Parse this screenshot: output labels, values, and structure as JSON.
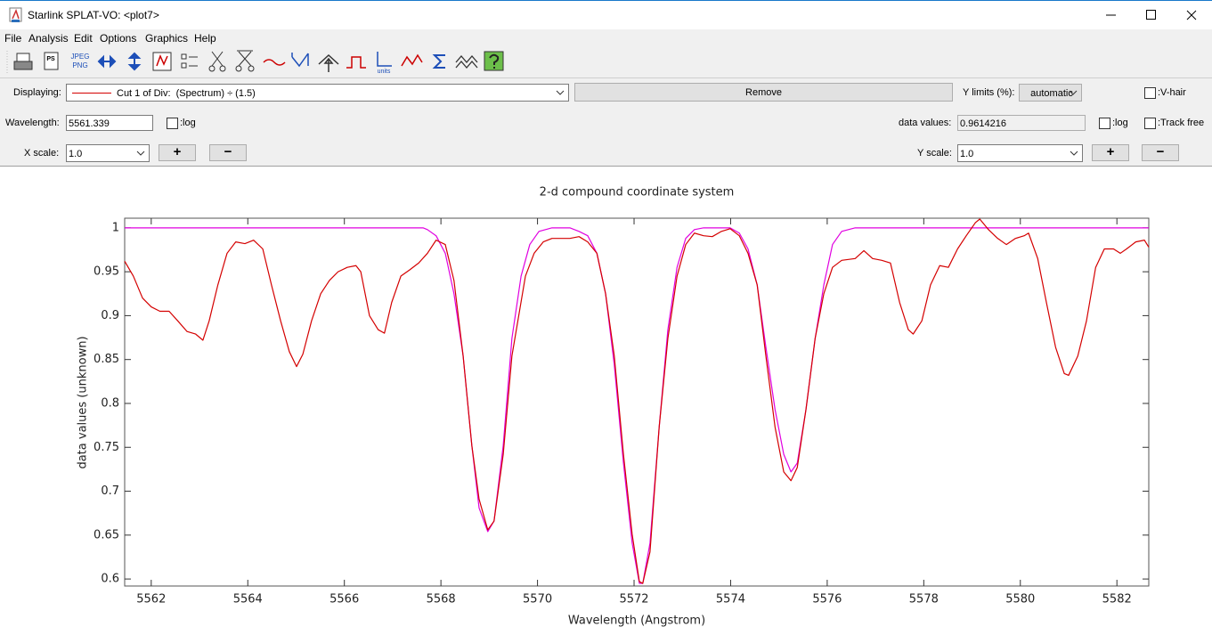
{
  "window": {
    "title": "Starlink SPLAT-VO: <plot7>"
  },
  "menu": [
    "File",
    "Analysis",
    "Edit",
    "Options",
    "Graphics",
    "Help"
  ],
  "toolbar": {
    "ps_icon": "PS",
    "jpeg_icon": [
      "JPEG",
      "PNG"
    ],
    "units_icon": "units"
  },
  "controls": {
    "displaying_label": "Displaying:",
    "displaying_value": "Cut 1 of Div:  (Spectrum) ÷ (1.5)",
    "remove_button": "Remove",
    "ylimits_label": "Y limits (%):",
    "ylimits_value": "automatic",
    "vhair": ":V-hair",
    "wavelength_label": "Wavelength:",
    "wavelength_value": "5561.339",
    "xlog": ":log",
    "data_values_label": "data values:",
    "data_values_value": "0.9614216",
    "ylog": ":log",
    "track_free": ":Track free",
    "xscale_label": "X scale:",
    "xscale_value": "1.0",
    "xscale_plus": "+",
    "xscale_minus": "−",
    "yscale_label": "Y scale:",
    "yscale_value": "1.0",
    "yscale_plus": "+",
    "yscale_minus": "−"
  },
  "chart_data": {
    "type": "line",
    "title": "2-d compound coordinate system",
    "x_label": "Wavelength (Angstrom)",
    "y_label": "data values (unknown)",
    "xlim": [
      5561.45,
      5582.66
    ],
    "ylim": [
      0.592,
      1.011
    ],
    "xticks": [
      5562,
      5564,
      5566,
      5568,
      5570,
      5572,
      5574,
      5576,
      5578,
      5580,
      5582
    ],
    "yticks": [
      0.6,
      0.65,
      0.7,
      0.75,
      0.8,
      0.85,
      0.9,
      0.95,
      1
    ],
    "series": [
      {
        "color": "#e000e0",
        "x": [
          5561.45,
          5567.63,
          5567.72,
          5567.9,
          5568.09,
          5568.27,
          5568.46,
          5568.64,
          5568.79,
          5568.97,
          5569.1,
          5569.29,
          5569.47,
          5569.66,
          5569.84,
          5570.03,
          5570.3,
          5570.67,
          5570.86,
          5571.04,
          5571.23,
          5571.41,
          5571.59,
          5571.78,
          5571.96,
          5572.11,
          5572.18,
          5572.33,
          5572.52,
          5572.7,
          5572.89,
          5573.07,
          5573.25,
          5573.44,
          5573.99,
          5574.18,
          5574.36,
          5574.55,
          5574.73,
          5574.92,
          5575.1,
          5575.25,
          5575.38,
          5575.56,
          5575.75,
          5575.93,
          5576.11,
          5576.3,
          5576.58,
          5582.66
        ],
        "values": [
          1,
          1,
          0.998,
          0.991,
          0.971,
          0.925,
          0.854,
          0.752,
          0.681,
          0.654,
          0.666,
          0.752,
          0.874,
          0.945,
          0.981,
          0.996,
          1,
          1,
          0.996,
          0.991,
          0.971,
          0.925,
          0.844,
          0.732,
          0.641,
          0.595,
          0.595,
          0.641,
          0.773,
          0.884,
          0.955,
          0.988,
          0.998,
          1,
          1,
          0.994,
          0.976,
          0.935,
          0.864,
          0.793,
          0.742,
          0.722,
          0.732,
          0.793,
          0.874,
          0.935,
          0.981,
          0.996,
          1,
          1
        ]
      },
      {
        "color": "#d40000",
        "x": [
          5561.45,
          5561.63,
          5561.82,
          5562.0,
          5562.18,
          5562.37,
          5562.55,
          5562.74,
          5562.92,
          5563.07,
          5563.2,
          5563.38,
          5563.57,
          5563.75,
          5563.94,
          5564.12,
          5564.31,
          5564.49,
          5564.68,
          5564.86,
          5565.01,
          5565.14,
          5565.32,
          5565.51,
          5565.69,
          5565.87,
          5566.06,
          5566.24,
          5566.34,
          5566.43,
          5566.52,
          5566.7,
          5566.83,
          5566.98,
          5567.17,
          5567.35,
          5567.54,
          5567.72,
          5567.9,
          5568.09,
          5568.27,
          5568.46,
          5568.64,
          5568.79,
          5568.97,
          5569.1,
          5569.29,
          5569.47,
          5569.75,
          5569.93,
          5570.12,
          5570.3,
          5570.49,
          5570.67,
          5570.86,
          5571.04,
          5571.23,
          5571.41,
          5571.59,
          5571.78,
          5571.96,
          5572.11,
          5572.18,
          5572.33,
          5572.52,
          5572.7,
          5572.89,
          5573.07,
          5573.25,
          5573.44,
          5573.62,
          5573.81,
          5573.99,
          5574.18,
          5574.36,
          5574.55,
          5574.73,
          5574.92,
          5575.1,
          5575.25,
          5575.38,
          5575.56,
          5575.75,
          5575.93,
          5576.11,
          5576.3,
          5576.58,
          5576.76,
          5576.94,
          5577.13,
          5577.31,
          5577.5,
          5577.68,
          5577.78,
          5577.96,
          5578.14,
          5578.33,
          5578.51,
          5578.7,
          5578.88,
          5579.07,
          5579.16,
          5579.34,
          5579.53,
          5579.71,
          5579.9,
          5580.08,
          5580.17,
          5580.36,
          5580.54,
          5580.73,
          5580.91,
          5581.0,
          5581.19,
          5581.37,
          5581.56,
          5581.74,
          5581.93,
          5582.07,
          5582.2,
          5582.39,
          5582.57,
          5582.66
        ],
        "values": [
          0.962,
          0.945,
          0.92,
          0.91,
          0.905,
          0.905,
          0.894,
          0.882,
          0.879,
          0.872,
          0.894,
          0.935,
          0.971,
          0.984,
          0.982,
          0.986,
          0.976,
          0.935,
          0.894,
          0.859,
          0.842,
          0.856,
          0.894,
          0.925,
          0.94,
          0.95,
          0.955,
          0.957,
          0.95,
          0.925,
          0.9,
          0.884,
          0.88,
          0.915,
          0.945,
          0.952,
          0.96,
          0.971,
          0.986,
          0.981,
          0.94,
          0.854,
          0.752,
          0.691,
          0.656,
          0.666,
          0.742,
          0.854,
          0.945,
          0.971,
          0.984,
          0.988,
          0.988,
          0.988,
          0.99,
          0.984,
          0.971,
          0.925,
          0.854,
          0.742,
          0.651,
          0.597,
          0.595,
          0.631,
          0.773,
          0.874,
          0.945,
          0.981,
          0.994,
          0.991,
          0.99,
          0.996,
          0.999,
          0.991,
          0.971,
          0.935,
          0.854,
          0.773,
          0.722,
          0.712,
          0.727,
          0.793,
          0.874,
          0.925,
          0.955,
          0.963,
          0.965,
          0.974,
          0.965,
          0.963,
          0.96,
          0.915,
          0.884,
          0.879,
          0.894,
          0.935,
          0.957,
          0.955,
          0.976,
          0.991,
          1.006,
          1.01,
          0.998,
          0.988,
          0.981,
          0.988,
          0.991,
          0.994,
          0.965,
          0.915,
          0.864,
          0.834,
          0.832,
          0.854,
          0.894,
          0.955,
          0.976,
          0.976,
          0.971,
          0.976,
          0.984,
          0.986,
          0.978
        ]
      }
    ]
  }
}
